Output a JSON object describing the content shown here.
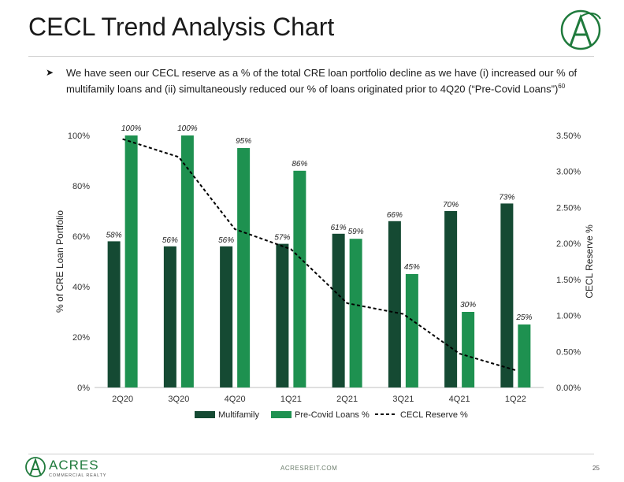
{
  "page": {
    "title": "CECL Trend Analysis Chart",
    "bullet": "We have seen our CECL reserve as a % of the total CRE loan portfolio decline as we have (i) increased our % of multifamily loans and (ii) simultaneously reduced our % of loans originated prior to 4Q20 (“Pre-Covid Loans”)",
    "bullet_footnote": "60",
    "footer_site": "ACRESREIT.COM",
    "footer_page": "25",
    "logo_text": "ACRES",
    "logo_subtext": "COMMERCIAL REALTY"
  },
  "colors": {
    "multifamily": "#154a33",
    "precovid": "#1e9150",
    "cecl": "#000000",
    "brand_green": "#1f7a3c"
  },
  "chart_data": {
    "type": "bar",
    "categories": [
      "2Q20",
      "3Q20",
      "4Q20",
      "1Q21",
      "2Q21",
      "3Q21",
      "4Q21",
      "1Q22"
    ],
    "series": [
      {
        "name": "Multifamily",
        "values": [
          58,
          56,
          56,
          57,
          61,
          66,
          70,
          73
        ],
        "labels": [
          "58%",
          "56%",
          "56%",
          "57%",
          "61%",
          "66%",
          "70%",
          "73%"
        ]
      },
      {
        "name": "Pre-Covid Loans %",
        "values": [
          100,
          100,
          95,
          86,
          59,
          45,
          30,
          25
        ],
        "labels": [
          "100%",
          "100%",
          "95%",
          "86%",
          "59%",
          "45%",
          "30%",
          "25%"
        ]
      },
      {
        "name": "CECL Reserve %",
        "type": "line",
        "axis": "right",
        "style": "dashed",
        "values": [
          3.45,
          3.2,
          2.2,
          1.92,
          1.17,
          1.02,
          0.47,
          0.24
        ]
      }
    ],
    "ylabel": "% of CRE Loan Portfolio",
    "ylabel_right": "CECL Reserve %",
    "ylim": [
      0,
      100
    ],
    "yticks": [
      "0%",
      "20%",
      "40%",
      "60%",
      "80%",
      "100%"
    ],
    "ylim_right": [
      0,
      3.5
    ],
    "yticks_right": [
      "0.00%",
      "0.50%",
      "1.00%",
      "1.50%",
      "2.00%",
      "2.50%",
      "3.00%",
      "3.50%"
    ],
    "legend_position": "bottom",
    "grid": false
  }
}
